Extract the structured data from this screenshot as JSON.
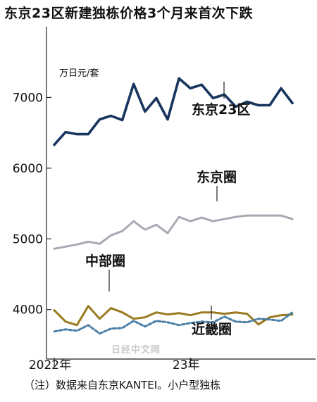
{
  "title": "东京23区新建独栋价格3个月来首次下跌",
  "note": "（注）数据来自东京KANTEI。小户型独栋",
  "watermark": "日经中文网",
  "chart_data": {
    "type": "line",
    "title": "东京23区新建独栋价格3个月来首次下跌",
    "unit_label": "万日元/套",
    "ylim": [
      3300,
      8000
    ],
    "yticks": [
      4000,
      5000,
      6000,
      7000
    ],
    "x_tick_labels": [
      "2022年",
      "23年"
    ],
    "x_tick_index": [
      0,
      12
    ],
    "grid": false,
    "colors": {
      "tokyo23": "#17355e",
      "tokyo": "#a9a9b4",
      "chubu": "#9b7a1f",
      "kinki": "#4a7ea6"
    },
    "series": [
      {
        "key": "tokyo23",
        "name": "东京23区",
        "values": [
          6330,
          6510,
          6480,
          6480,
          6690,
          6740,
          6680,
          7190,
          6800,
          6990,
          6690,
          7270,
          7130,
          7180,
          6990,
          7040,
          6870,
          6940,
          6890,
          6890,
          7130,
          6920
        ]
      },
      {
        "key": "tokyo",
        "name": "东京圈",
        "values": [
          4860,
          4890,
          4920,
          4960,
          4930,
          5050,
          5110,
          5250,
          5130,
          5200,
          5080,
          5310,
          5250,
          5300,
          5250,
          5280,
          5310,
          5330,
          5330,
          5330,
          5330,
          5280
        ]
      },
      {
        "key": "chubu",
        "name": "中部圈",
        "values": [
          3990,
          3830,
          3780,
          4050,
          3870,
          4020,
          3960,
          3870,
          3890,
          3960,
          3930,
          3950,
          3920,
          3960,
          3960,
          3940,
          3960,
          3940,
          3790,
          3890,
          3920,
          3930
        ]
      },
      {
        "key": "kinki",
        "name": "近畿圈",
        "values": [
          3690,
          3720,
          3700,
          3780,
          3660,
          3730,
          3740,
          3840,
          3760,
          3840,
          3820,
          3780,
          3810,
          3830,
          3820,
          3900,
          3830,
          3820,
          3870,
          3860,
          3840,
          3960
        ]
      }
    ]
  }
}
